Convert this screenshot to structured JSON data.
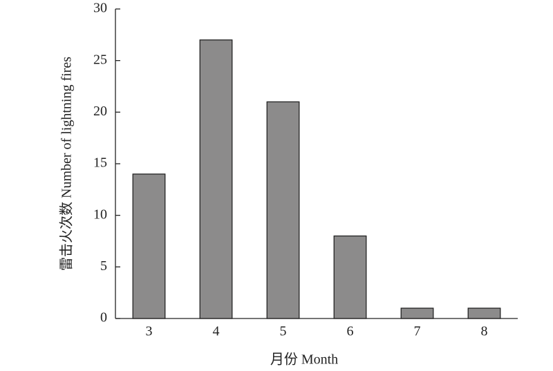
{
  "chart_data": {
    "type": "bar",
    "x_label": "月份 Month",
    "y_label": "雷击火次数 Number of lightning fires",
    "categories": [
      "3",
      "4",
      "5",
      "6",
      "7",
      "8"
    ],
    "values": [
      14,
      27,
      21,
      8,
      1,
      1
    ],
    "color": "#8c8b8b",
    "ylim": [
      0,
      30
    ],
    "yticks": [
      0,
      5,
      10,
      15,
      20,
      25,
      30
    ],
    "grid": false
  }
}
